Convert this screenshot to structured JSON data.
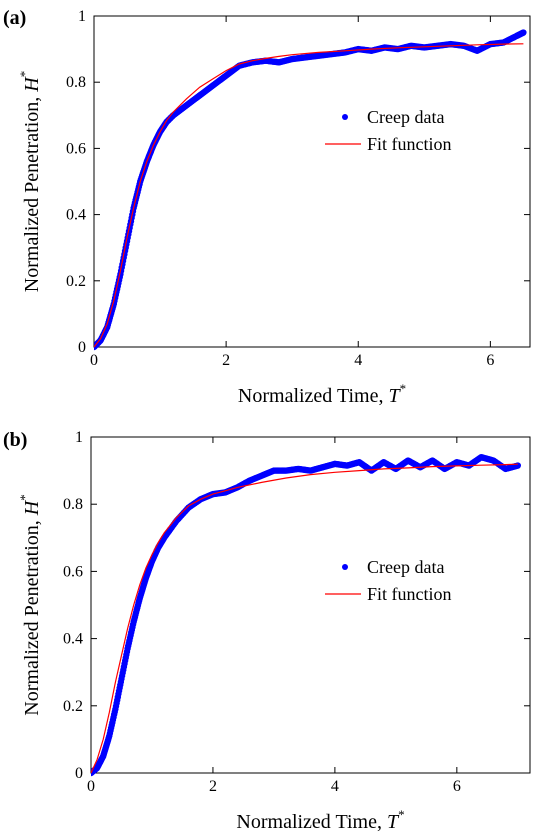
{
  "chart_data": [
    {
      "type": "scatter",
      "panel_label": "(a)",
      "xlabel": "Normalized Time, ",
      "xlabel_symbol": "T",
      "xlabel_sup": "*",
      "ylabel": "Normalized Penetration, ",
      "ylabel_symbol": "H",
      "ylabel_sup": "*",
      "xlim": [
        0,
        6.6
      ],
      "ylim": [
        0,
        1
      ],
      "xticks": [
        "0",
        "2",
        "4",
        "6"
      ],
      "yticks": [
        "0",
        "0.2",
        "0.4",
        "0.6",
        "0.8",
        "1"
      ],
      "grid": false,
      "legend_placement": "right-middle",
      "series": [
        {
          "name": "Creep data",
          "mark": "points",
          "color": "#0000ff",
          "x": [
            0,
            0.1,
            0.2,
            0.3,
            0.4,
            0.5,
            0.6,
            0.7,
            0.8,
            0.9,
            1.0,
            1.1,
            1.2,
            1.4,
            1.6,
            1.8,
            2.0,
            2.2,
            2.4,
            2.6,
            2.8,
            3.0,
            3.2,
            3.4,
            3.6,
            3.8,
            4.0,
            4.2,
            4.4,
            4.6,
            4.8,
            5.0,
            5.2,
            5.4,
            5.6,
            5.8,
            6.0,
            6.2,
            6.4,
            6.5
          ],
          "y": [
            0,
            0.02,
            0.06,
            0.13,
            0.22,
            0.32,
            0.42,
            0.5,
            0.56,
            0.61,
            0.65,
            0.68,
            0.7,
            0.73,
            0.76,
            0.79,
            0.82,
            0.85,
            0.86,
            0.865,
            0.86,
            0.87,
            0.875,
            0.88,
            0.885,
            0.89,
            0.9,
            0.895,
            0.905,
            0.9,
            0.91,
            0.905,
            0.91,
            0.915,
            0.91,
            0.895,
            0.915,
            0.92,
            0.94,
            0.95
          ]
        },
        {
          "name": "Fit function",
          "mark": "line",
          "color": "#ff0000",
          "x": [
            0,
            0.1,
            0.2,
            0.3,
            0.4,
            0.5,
            0.6,
            0.7,
            0.8,
            0.9,
            1.0,
            1.1,
            1.2,
            1.4,
            1.6,
            1.8,
            2.0,
            2.2,
            2.4,
            2.6,
            2.8,
            3.0,
            3.4,
            3.8,
            4.2,
            4.6,
            5.0,
            5.4,
            5.8,
            6.2,
            6.5
          ],
          "y": [
            0,
            0.025,
            0.07,
            0.14,
            0.23,
            0.33,
            0.42,
            0.5,
            0.56,
            0.61,
            0.65,
            0.685,
            0.71,
            0.75,
            0.785,
            0.81,
            0.835,
            0.855,
            0.865,
            0.872,
            0.878,
            0.883,
            0.89,
            0.895,
            0.9,
            0.904,
            0.907,
            0.91,
            0.913,
            0.915,
            0.916
          ]
        }
      ]
    },
    {
      "type": "scatter",
      "panel_label": "(b)",
      "xlabel": "Normalized Time, ",
      "xlabel_symbol": "T",
      "xlabel_sup": "*",
      "ylabel": "Normalized Penetration, ",
      "ylabel_symbol": "H",
      "ylabel_sup": "*",
      "xlim": [
        0,
        7.2
      ],
      "ylim": [
        0,
        1
      ],
      "xticks": [
        "0",
        "2",
        "4",
        "6"
      ],
      "yticks": [
        "0",
        "0.2",
        "0.4",
        "0.6",
        "0.8",
        "1"
      ],
      "grid": false,
      "legend_placement": "right-middle",
      "series": [
        {
          "name": "Creep data",
          "mark": "points",
          "color": "#0000ff",
          "x": [
            0,
            0.1,
            0.2,
            0.3,
            0.4,
            0.5,
            0.6,
            0.7,
            0.8,
            0.9,
            1.0,
            1.1,
            1.2,
            1.4,
            1.6,
            1.8,
            2.0,
            2.2,
            2.4,
            2.6,
            2.8,
            3.0,
            3.2,
            3.4,
            3.6,
            3.8,
            4.0,
            4.2,
            4.4,
            4.6,
            4.8,
            5.0,
            5.2,
            5.4,
            5.6,
            5.8,
            6.0,
            6.2,
            6.4,
            6.6,
            6.8,
            7.0
          ],
          "y": [
            0,
            0.015,
            0.05,
            0.11,
            0.19,
            0.28,
            0.37,
            0.45,
            0.52,
            0.58,
            0.63,
            0.67,
            0.7,
            0.75,
            0.79,
            0.815,
            0.83,
            0.835,
            0.85,
            0.87,
            0.885,
            0.9,
            0.9,
            0.905,
            0.9,
            0.91,
            0.92,
            0.915,
            0.925,
            0.9,
            0.925,
            0.905,
            0.93,
            0.91,
            0.93,
            0.905,
            0.925,
            0.915,
            0.94,
            0.93,
            0.905,
            0.915
          ]
        },
        {
          "name": "Fit function",
          "mark": "line",
          "color": "#ff0000",
          "x": [
            0,
            0.1,
            0.2,
            0.3,
            0.4,
            0.5,
            0.6,
            0.7,
            0.8,
            0.9,
            1.0,
            1.1,
            1.2,
            1.4,
            1.6,
            1.8,
            2.0,
            2.2,
            2.4,
            2.8,
            3.2,
            3.6,
            4.0,
            4.4,
            4.8,
            5.2,
            5.6,
            6.0,
            6.4,
            6.8,
            7.0
          ],
          "y": [
            0,
            0.04,
            0.1,
            0.18,
            0.27,
            0.35,
            0.43,
            0.5,
            0.56,
            0.61,
            0.65,
            0.685,
            0.715,
            0.76,
            0.795,
            0.815,
            0.83,
            0.84,
            0.85,
            0.865,
            0.878,
            0.888,
            0.895,
            0.9,
            0.905,
            0.908,
            0.912,
            0.914,
            0.916,
            0.918,
            0.919
          ]
        }
      ]
    }
  ]
}
